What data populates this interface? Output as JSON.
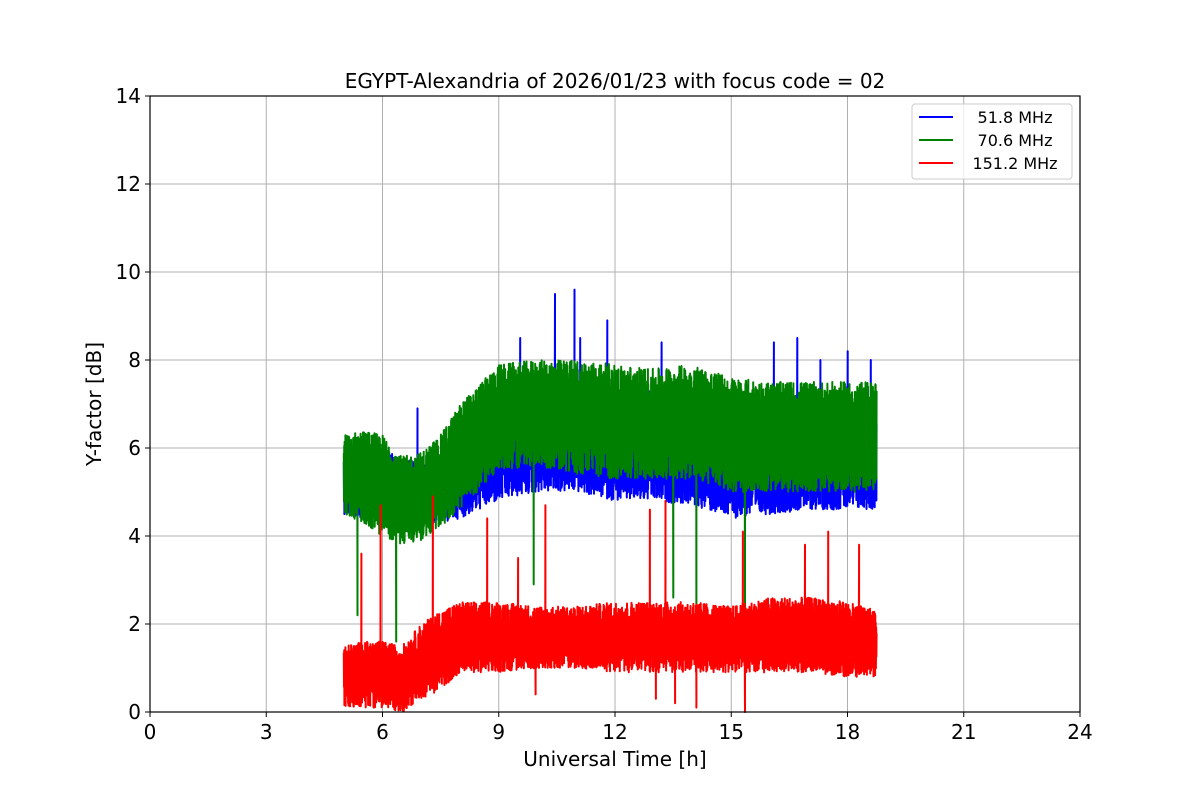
{
  "chart_data": {
    "type": "line",
    "title": "EGYPT-Alexandria of 2026/01/23 with focus code = 02",
    "xlabel": "Universal Time [h]",
    "ylabel": "Y-factor [dB]",
    "xlim": [
      0,
      24
    ],
    "ylim": [
      0,
      14
    ],
    "xticks": [
      "0",
      "3",
      "6",
      "9",
      "12",
      "15",
      "18",
      "21",
      "24"
    ],
    "yticks": [
      "0",
      "2",
      "4",
      "6",
      "8",
      "10",
      "12",
      "14"
    ],
    "grid": true,
    "legend_position": "top-right",
    "x_range_of_data": [
      5.0,
      18.75
    ],
    "series": [
      {
        "name": "51.8 MHz",
        "color": "#0000ff",
        "envelope": {
          "t": [
            5.0,
            5.5,
            6.0,
            6.5,
            7.0,
            7.5,
            8.0,
            9.0,
            10.0,
            11.0,
            12.0,
            13.0,
            14.0,
            15.0,
            16.0,
            17.0,
            18.0,
            18.75
          ],
          "low": [
            4.5,
            4.4,
            4.4,
            4.3,
            4.3,
            4.3,
            4.4,
            4.8,
            5.0,
            5.0,
            4.8,
            4.8,
            4.7,
            4.4,
            4.5,
            4.6,
            4.6,
            4.6
          ],
          "high": [
            5.8,
            6.0,
            6.0,
            5.8,
            5.6,
            5.8,
            6.5,
            7.0,
            7.5,
            7.5,
            7.3,
            7.3,
            7.3,
            7.0,
            6.8,
            7.0,
            7.0,
            7.0
          ]
        },
        "spikes": [
          [
            6.9,
            6.9
          ],
          [
            9.55,
            8.5
          ],
          [
            10.45,
            9.5
          ],
          [
            10.95,
            9.6
          ],
          [
            11.1,
            8.5
          ],
          [
            11.8,
            8.9
          ],
          [
            13.2,
            8.4
          ],
          [
            16.1,
            8.4
          ],
          [
            16.7,
            8.5
          ],
          [
            17.3,
            8.0
          ],
          [
            18.0,
            8.2
          ],
          [
            18.6,
            8.0
          ]
        ]
      },
      {
        "name": "70.6 MHz",
        "color": "#008000",
        "envelope": {
          "t": [
            5.0,
            5.5,
            6.0,
            6.5,
            7.0,
            7.5,
            8.0,
            9.0,
            10.0,
            11.0,
            12.0,
            13.0,
            14.0,
            15.0,
            16.0,
            17.0,
            18.0,
            18.75
          ],
          "low": [
            4.5,
            4.3,
            4.0,
            3.8,
            3.9,
            4.2,
            4.6,
            5.5,
            5.6,
            5.4,
            5.3,
            5.3,
            5.3,
            5.0,
            5.0,
            5.0,
            5.0,
            5.0
          ],
          "high": [
            6.3,
            6.4,
            6.3,
            5.8,
            5.9,
            6.3,
            7.0,
            7.9,
            8.0,
            8.0,
            7.9,
            7.8,
            7.9,
            7.6,
            7.5,
            7.5,
            7.5,
            7.5
          ]
        },
        "spikes": [
          [
            5.35,
            2.2
          ],
          [
            6.35,
            1.6
          ],
          [
            9.9,
            2.9
          ],
          [
            13.5,
            2.6
          ],
          [
            14.1,
            2.0
          ],
          [
            15.35,
            0.0
          ]
        ]
      },
      {
        "name": "151.2 MHz",
        "color": "#ff0000",
        "envelope": {
          "t": [
            5.0,
            5.5,
            6.0,
            6.5,
            7.0,
            7.5,
            8.0,
            9.0,
            10.0,
            11.0,
            12.0,
            13.0,
            14.0,
            15.0,
            16.0,
            17.0,
            18.0,
            18.75
          ],
          "low": [
            0.1,
            0.1,
            0.1,
            0.0,
            0.3,
            0.5,
            0.9,
            0.9,
            1.0,
            1.0,
            0.9,
            0.9,
            0.9,
            0.9,
            0.9,
            0.9,
            0.8,
            0.8
          ],
          "high": [
            1.5,
            1.6,
            1.6,
            1.5,
            2.0,
            2.3,
            2.5,
            2.5,
            2.4,
            2.4,
            2.5,
            2.5,
            2.5,
            2.4,
            2.6,
            2.6,
            2.5,
            2.3
          ]
        },
        "spikes": [
          [
            5.45,
            3.6
          ],
          [
            5.95,
            4.7
          ],
          [
            7.3,
            4.9
          ],
          [
            8.7,
            4.4
          ],
          [
            9.5,
            3.5
          ],
          [
            10.2,
            4.7
          ],
          [
            12.9,
            4.6
          ],
          [
            13.3,
            4.8
          ],
          [
            15.3,
            4.1
          ],
          [
            16.9,
            3.8
          ],
          [
            17.5,
            4.1
          ],
          [
            18.3,
            3.8
          ],
          [
            9.95,
            0.4
          ],
          [
            13.05,
            0.3
          ],
          [
            13.55,
            0.2
          ],
          [
            14.1,
            0.1
          ],
          [
            15.35,
            0.0
          ]
        ]
      }
    ]
  }
}
